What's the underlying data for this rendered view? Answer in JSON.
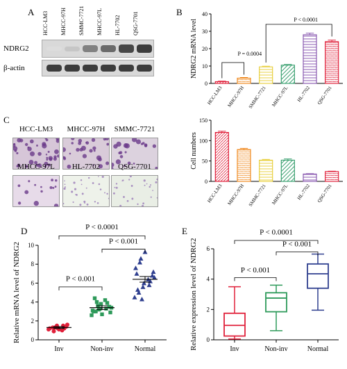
{
  "panels": {
    "A": {
      "letter": "A",
      "cell_lines": [
        "HCC-LM3",
        "MHCC-97H",
        "SMMC-7721",
        "MHCC-97L",
        "HL-7702",
        "QSG-7701"
      ],
      "rows": [
        "NDRG2",
        "β-actin"
      ],
      "ndrg2_band_intensity": [
        0.15,
        0.25,
        0.55,
        0.65,
        0.8,
        0.85
      ],
      "actin_band_intensity": [
        0.85,
        0.85,
        0.85,
        0.85,
        0.85,
        0.85
      ]
    },
    "B": {
      "letter": "B"
    },
    "C": {
      "letter": "C",
      "image_labels": [
        "HCC-LM3",
        "MHCC-97H",
        "SMMC-7721",
        "MHCC-97L",
        "HL-7702",
        "QSG-7701"
      ]
    },
    "D": {
      "letter": "D"
    },
    "E": {
      "letter": "E"
    }
  },
  "chart_data": [
    {
      "id": "B",
      "type": "bar",
      "ylabel": "NDRG2 mRNA level",
      "categories": [
        "HCC-LM3",
        "MHCC-97H",
        "SMMC-7721",
        "MHCC-97L",
        "HL-7702",
        "QSG-7701"
      ],
      "values": [
        1,
        3,
        9.5,
        10.5,
        28,
        24
      ],
      "errors": [
        0.3,
        0.4,
        0.4,
        0.4,
        0.9,
        0.9
      ],
      "colors": [
        "#e0203a",
        "#f08a20",
        "#e8d040",
        "#3aa070",
        "#8a5ab0",
        "#e0203a"
      ],
      "ylim": [
        0,
        40
      ],
      "yticks": [
        0,
        10,
        20,
        30,
        40
      ],
      "annotations": [
        "P = 0.0004",
        "P < 0.0001"
      ]
    },
    {
      "id": "C",
      "type": "bar",
      "ylabel": "Cell numbers",
      "categories": [
        "HCC-LM3",
        "MHCC-97H",
        "SMMC-7721",
        "MHCC-97L",
        "HL-7702",
        "QSG-7701"
      ],
      "values": [
        120,
        78,
        52,
        52,
        18,
        24
      ],
      "errors": [
        3,
        3,
        2,
        3,
        1,
        1
      ],
      "colors": [
        "#e0203a",
        "#f08a20",
        "#e8d040",
        "#3aa070",
        "#8a5ab0",
        "#e0203a"
      ],
      "ylim": [
        0,
        150
      ],
      "yticks": [
        0,
        50,
        100,
        150
      ]
    },
    {
      "id": "D",
      "type": "scatter",
      "ylabel": "Relative mRNA level of NDRG2",
      "categories": [
        "Inv",
        "Non-inv",
        "Normal"
      ],
      "colors": [
        "#e0203a",
        "#2e9a5a",
        "#2f3f8f"
      ],
      "means": [
        1.3,
        3.4,
        6.4
      ],
      "sems": [
        0.1,
        0.2,
        0.3
      ],
      "points": [
        [
          1.1,
          1.3,
          1.5,
          1.2,
          1.0,
          1.4,
          1.6,
          1.2,
          0.9,
          1.3,
          1.1,
          1.5,
          1.2
        ],
        [
          2.6,
          3.0,
          3.3,
          3.8,
          4.2,
          3.5,
          2.9,
          3.1,
          4.0,
          3.6,
          2.7,
          3.3,
          3.9,
          3.4,
          3.0,
          4.4,
          3.2
        ],
        [
          4.5,
          5.0,
          5.6,
          6.0,
          6.4,
          6.8,
          7.2,
          7.6,
          8.2,
          8.6,
          9.3,
          5.8,
          6.2,
          6.6,
          7.0,
          5.3,
          4.3
        ]
      ],
      "ylim": [
        0,
        10
      ],
      "yticks": [
        0,
        2,
        4,
        6,
        8,
        10
      ],
      "annotations": [
        "P < 0.0001",
        "P < 0.001",
        "P < 0.001"
      ]
    },
    {
      "id": "E",
      "type": "box",
      "ylabel": "Relative expression level of NDRG2",
      "categories": [
        "Inv",
        "Non-inv",
        "Normal"
      ],
      "colors": [
        "#e0203a",
        "#2e9a5a",
        "#2f3f8f"
      ],
      "boxes": [
        {
          "min": 0.05,
          "q1": 0.25,
          "median": 0.95,
          "q3": 1.75,
          "max": 3.5
        },
        {
          "min": 0.6,
          "q1": 1.85,
          "median": 2.75,
          "q3": 3.1,
          "max": 3.6
        },
        {
          "min": 1.95,
          "q1": 3.4,
          "median": 4.35,
          "q3": 5.0,
          "max": 5.65
        }
      ],
      "ylim": [
        0,
        6
      ],
      "yticks": [
        0,
        2,
        4,
        6
      ],
      "annotations": [
        "P < 0.0001",
        "P < 0.001",
        "P < 0.001"
      ]
    }
  ]
}
